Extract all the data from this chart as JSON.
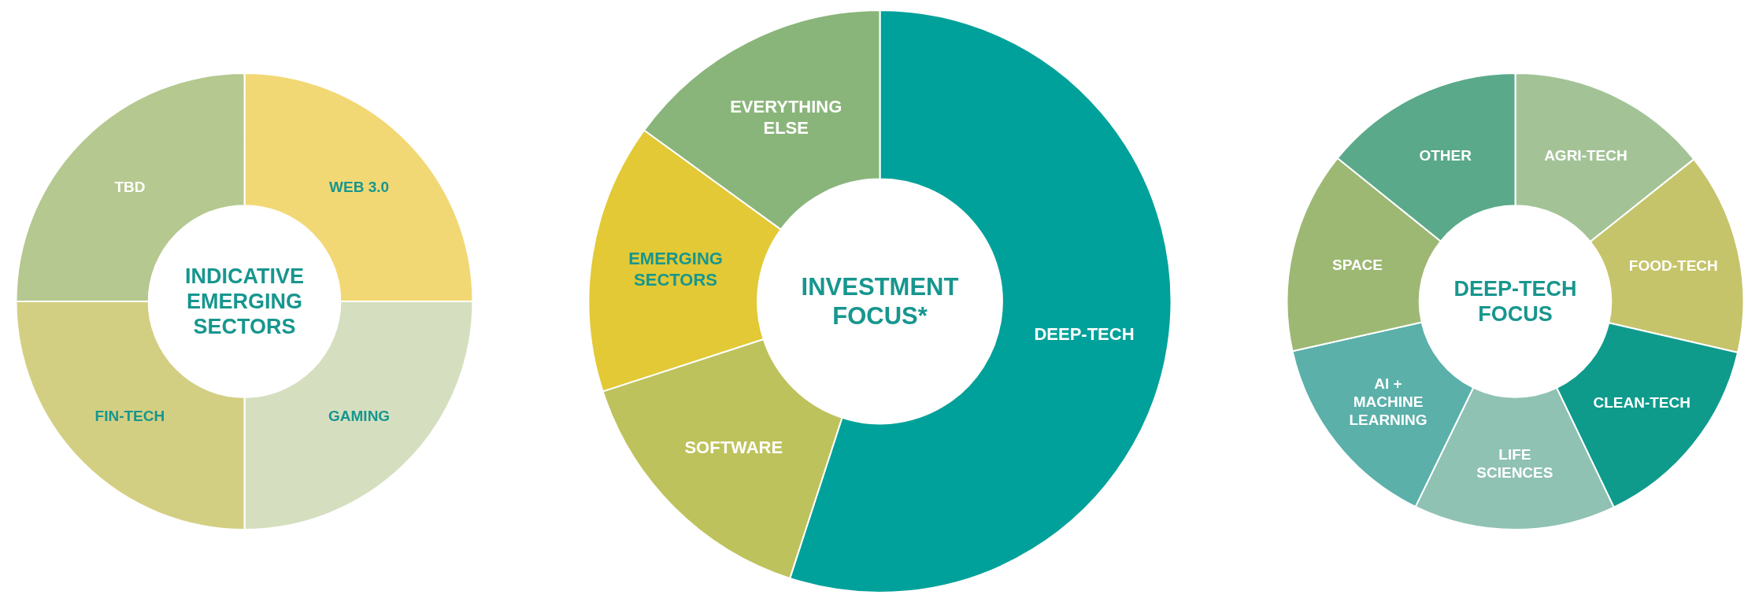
{
  "chart_data": [
    {
      "type": "donut",
      "title": "INDICATIVE EMERGING SECTORS",
      "categories": [
        "WEB 3.0",
        "GAMING",
        "FIN-TECH",
        "TBD"
      ],
      "values": [
        25,
        25,
        25,
        25
      ],
      "colors": [
        "#f2d875",
        "#d5dfc0",
        "#d3cf82",
        "#b5c88f"
      ]
    },
    {
      "type": "donut",
      "title": "INVESTMENT FOCUS*",
      "categories": [
        "DEEP-TECH",
        "SOFTWARE",
        "EMERGING SECTORS",
        "EVERYTHING ELSE"
      ],
      "values": [
        55,
        15,
        15,
        15
      ],
      "colors": [
        "#00a19a",
        "#bec25c",
        "#e2c935",
        "#8ab57a"
      ]
    },
    {
      "type": "donut",
      "title": "DEEP-TECH FOCUS",
      "categories": [
        "AGRI-TECH",
        "FOOD-TECH",
        "CLEAN-TECH",
        "LIFE SCIENCES",
        "AI + MACHINE LEARNING",
        "SPACE",
        "OTHER"
      ],
      "values": [
        14.3,
        14.3,
        14.3,
        14.3,
        14.3,
        14.3,
        14.2
      ],
      "colors": [
        "#a3c397",
        "#c5c46a",
        "#0f9b8c",
        "#8fc2b3",
        "#5bb0aa",
        "#9db873",
        "#5aa98a"
      ]
    }
  ]
}
